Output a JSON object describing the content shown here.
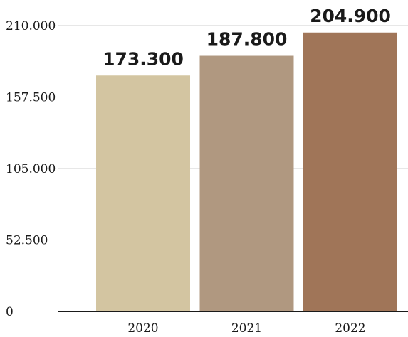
{
  "chart_data": {
    "type": "bar",
    "title": "",
    "xlabel": "",
    "ylabel": "",
    "categories": [
      "2020",
      "2021",
      "2022"
    ],
    "values": [
      173300,
      187800,
      204900
    ],
    "data_labels": [
      "173.300",
      "187.800",
      "204.900"
    ],
    "ylim": [
      0,
      210000
    ],
    "yticks": [
      0,
      52500,
      105000,
      157500,
      210000
    ],
    "ytick_labels": [
      "0",
      "52.500",
      "105.000",
      "157.500",
      "210.000"
    ],
    "bar_colors": [
      "#d3c5a1",
      "#b09880",
      "#a07558"
    ],
    "grid": true,
    "legend": false
  }
}
